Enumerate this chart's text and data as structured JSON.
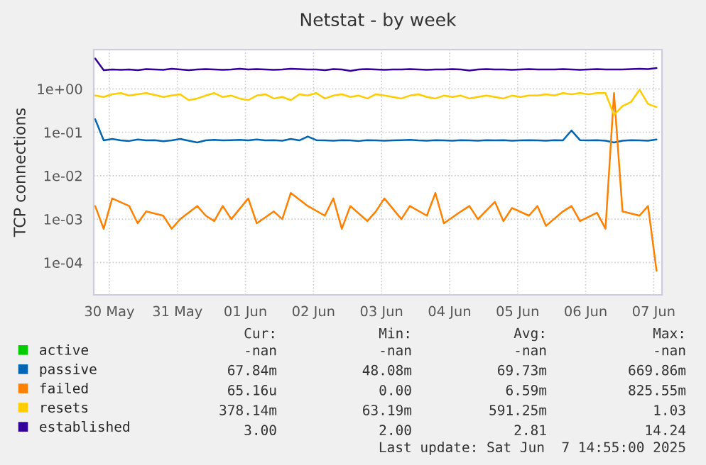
{
  "chart_data": {
    "type": "line",
    "title": "Netstat - by week",
    "ylabel": "TCP connections",
    "x": [
      "2025-05-30T07:00",
      "2025-05-30T10:00",
      "2025-05-30T13:00",
      "2025-05-30T16:00",
      "2025-05-30T19:00",
      "2025-05-30T22:00",
      "2025-05-31T01:00",
      "2025-05-31T04:00",
      "2025-05-31T07:00",
      "2025-05-31T10:00",
      "2025-05-31T13:00",
      "2025-05-31T16:00",
      "2025-05-31T19:00",
      "2025-05-31T22:00",
      "2025-06-01T01:00",
      "2025-06-01T04:00",
      "2025-06-01T07:00",
      "2025-06-01T10:00",
      "2025-06-01T13:00",
      "2025-06-01T16:00",
      "2025-06-01T19:00",
      "2025-06-01T22:00",
      "2025-06-02T01:00",
      "2025-06-02T04:00",
      "2025-06-02T07:00",
      "2025-06-02T10:00",
      "2025-06-02T13:00",
      "2025-06-02T16:00",
      "2025-06-02T19:00",
      "2025-06-02T22:00",
      "2025-06-03T01:00",
      "2025-06-03T04:00",
      "2025-06-03T07:00",
      "2025-06-03T10:00",
      "2025-06-03T13:00",
      "2025-06-03T16:00",
      "2025-06-03T19:00",
      "2025-06-03T22:00",
      "2025-06-04T01:00",
      "2025-06-04T04:00",
      "2025-06-04T07:00",
      "2025-06-04T10:00",
      "2025-06-04T13:00",
      "2025-06-04T16:00",
      "2025-06-04T19:00",
      "2025-06-04T22:00",
      "2025-06-05T01:00",
      "2025-06-05T04:00",
      "2025-06-05T07:00",
      "2025-06-05T10:00",
      "2025-06-05T13:00",
      "2025-06-05T16:00",
      "2025-06-05T19:00",
      "2025-06-05T22:00",
      "2025-06-06T01:00",
      "2025-06-06T04:00",
      "2025-06-06T07:00",
      "2025-06-06T10:00",
      "2025-06-06T13:00",
      "2025-06-06T16:00",
      "2025-06-06T19:00",
      "2025-06-06T22:00",
      "2025-06-07T01:00",
      "2025-06-07T04:00",
      "2025-06-07T07:00",
      "2025-06-07T10:00",
      "2025-06-07T13:00"
    ],
    "series": [
      {
        "name": "active",
        "color": "#00cc00",
        "values": [
          null,
          null,
          null,
          null,
          null,
          null,
          null,
          null,
          null,
          null,
          null,
          null,
          null,
          null,
          null,
          null,
          null,
          null,
          null,
          null,
          null,
          null,
          null,
          null,
          null,
          null,
          null,
          null,
          null,
          null,
          null,
          null,
          null,
          null,
          null,
          null,
          null,
          null,
          null,
          null,
          null,
          null,
          null,
          null,
          null,
          null,
          null,
          null,
          null,
          null,
          null,
          null,
          null,
          null,
          null,
          null,
          null,
          null,
          null,
          null,
          null,
          null,
          null,
          null,
          null,
          null,
          null
        ]
      },
      {
        "name": "passive",
        "color": "#0066b3",
        "values": [
          0.2,
          0.065,
          0.07,
          0.065,
          0.063,
          0.068,
          0.065,
          0.066,
          0.062,
          0.065,
          0.07,
          0.064,
          0.058,
          0.065,
          0.067,
          0.065,
          0.066,
          0.067,
          0.065,
          0.068,
          0.065,
          0.066,
          0.064,
          0.07,
          0.065,
          0.08,
          0.066,
          0.065,
          0.064,
          0.066,
          0.065,
          0.063,
          0.066,
          0.065,
          0.064,
          0.065,
          0.066,
          0.067,
          0.065,
          0.064,
          0.066,
          0.065,
          0.064,
          0.066,
          0.065,
          0.064,
          0.066,
          0.065,
          0.066,
          0.064,
          0.065,
          0.066,
          0.065,
          0.064,
          0.066,
          0.065,
          0.11,
          0.066,
          0.065,
          0.066,
          0.064,
          0.058,
          0.064,
          0.066,
          0.065,
          0.064,
          0.068
        ]
      },
      {
        "name": "failed",
        "color": "#ff8000",
        "values": [
          0.002,
          0.0006,
          0.003,
          null,
          0.002,
          0.0008,
          0.0015,
          null,
          0.0012,
          0.0006,
          0.001,
          null,
          0.002,
          0.0012,
          0.0009,
          0.002,
          0.001,
          null,
          0.003,
          0.0008,
          null,
          0.0015,
          0.001,
          0.004,
          null,
          0.002,
          null,
          0.0012,
          0.003,
          0.0006,
          0.002,
          null,
          0.0009,
          0.0015,
          0.003,
          null,
          0.001,
          0.002,
          null,
          0.0012,
          0.004,
          0.0008,
          null,
          0.0015,
          0.002,
          0.001,
          null,
          0.0025,
          0.0009,
          0.0018,
          null,
          0.0012,
          0.002,
          0.0007,
          null,
          0.0015,
          0.002,
          0.0009,
          null,
          0.0014,
          0.0006,
          0.8,
          0.0015,
          null,
          0.0012,
          0.002,
          6.5e-05
        ]
      },
      {
        "name": "resets",
        "color": "#ffcc00",
        "values": [
          0.7,
          0.65,
          0.75,
          0.8,
          0.7,
          0.75,
          0.8,
          0.72,
          0.65,
          0.7,
          0.75,
          0.55,
          0.6,
          0.7,
          0.8,
          0.65,
          0.7,
          0.6,
          0.55,
          0.7,
          0.75,
          0.6,
          0.65,
          0.55,
          0.75,
          0.7,
          0.8,
          0.6,
          0.7,
          0.75,
          0.65,
          0.7,
          0.6,
          0.75,
          0.7,
          0.65,
          0.6,
          0.7,
          0.75,
          0.65,
          0.6,
          0.7,
          0.65,
          0.7,
          0.6,
          0.65,
          0.7,
          0.65,
          0.6,
          0.7,
          0.65,
          0.7,
          0.7,
          0.75,
          0.7,
          0.8,
          0.75,
          0.8,
          0.75,
          0.8,
          0.8,
          0.25,
          0.4,
          0.5,
          0.95,
          0.45,
          0.38
        ]
      },
      {
        "name": "established",
        "color": "#330099",
        "values": [
          5.0,
          2.7,
          2.8,
          2.75,
          2.8,
          2.7,
          2.85,
          2.8,
          2.75,
          2.9,
          2.8,
          2.7,
          2.8,
          2.85,
          2.8,
          2.75,
          2.8,
          2.9,
          2.8,
          2.85,
          2.8,
          2.75,
          2.8,
          2.9,
          2.85,
          2.8,
          2.8,
          2.7,
          2.85,
          2.8,
          2.6,
          2.8,
          2.85,
          2.8,
          2.75,
          2.8,
          2.8,
          2.85,
          2.8,
          2.75,
          2.8,
          2.8,
          2.85,
          2.8,
          2.65,
          2.8,
          2.85,
          2.8,
          2.8,
          2.75,
          2.8,
          2.85,
          2.8,
          2.8,
          2.8,
          2.85,
          2.8,
          2.75,
          2.8,
          2.85,
          2.8,
          2.8,
          2.8,
          2.85,
          2.9,
          2.85,
          3.0
        ]
      }
    ],
    "log": "y",
    "ylim": [
      1.8e-05,
      8
    ],
    "yticks": [
      {
        "value": 0.0001,
        "label": "1e-04"
      },
      {
        "value": 0.001,
        "label": "1e-03"
      },
      {
        "value": 0.01,
        "label": "1e-02"
      },
      {
        "value": 0.1,
        "label": "1e-01"
      },
      {
        "value": 1,
        "label": "1e+00"
      }
    ],
    "xlim": [
      "2025-05-30T06:30",
      "2025-06-07T14:55"
    ],
    "xticks": [
      {
        "value": "2025-05-30T12:00",
        "label": "30 May"
      },
      {
        "value": "2025-05-31T12:00",
        "label": "31 May"
      },
      {
        "value": "2025-06-01T12:00",
        "label": "01 Jun"
      },
      {
        "value": "2025-06-02T12:00",
        "label": "02 Jun"
      },
      {
        "value": "2025-06-03T12:00",
        "label": "03 Jun"
      },
      {
        "value": "2025-06-04T12:00",
        "label": "04 Jun"
      },
      {
        "value": "2025-06-05T12:00",
        "label": "05 Jun"
      },
      {
        "value": "2025-06-06T12:00",
        "label": "06 Jun"
      },
      {
        "value": "2025-06-07T12:00",
        "label": "07 Jun"
      }
    ],
    "grid": true,
    "legend": "bottom left",
    "annotations": [
      "Cur:",
      "Min:",
      "Avg:",
      "Max:",
      "-nan",
      "-nan",
      "-nan",
      "-nan",
      "67.84m",
      "48.08m",
      "69.73m",
      "669.86m",
      "65.16u",
      "0.00",
      "6.59m",
      "825.55m",
      "378.14m",
      "63.19m",
      "591.25m",
      "1.03",
      "3.00",
      "2.00",
      "2.81",
      "14.24",
      "Last update: Sat Jun  7 14:55:00 2025"
    ]
  }
}
